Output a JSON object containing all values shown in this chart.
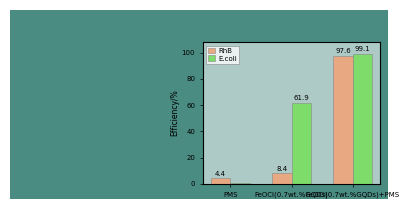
{
  "categories": [
    "PMS",
    "FeOCl(0.7wt.%GQDs)",
    "FeOCl(0.7wt.%GQDs)+PMS"
  ],
  "rhb_values": [
    4.4,
    8.4,
    97.6
  ],
  "ecoli_values": [
    0.5,
    61.9,
    99.1
  ],
  "rhb_labels": [
    "4.4",
    "8.4",
    "97.6"
  ],
  "ecoli_labels": [
    "",
    "61.9",
    "99.1"
  ],
  "bar_color_rhb": "#E8A882",
  "bar_color_ecoli": "#7EDD6A",
  "ylabel": "Efficiency/%",
  "ylim": [
    0,
    108
  ],
  "yticks": [
    0,
    20,
    40,
    60,
    80,
    100
  ],
  "yticklabels": [
    "0",
    "20",
    "40",
    "60",
    "80",
    "100"
  ],
  "legend_rhb": "RhB",
  "legend_ecoli": "E.coli",
  "bar_width": 0.32,
  "font_size_labels": 5.0,
  "font_size_ticks": 5.0,
  "font_size_legend": 5.0,
  "font_size_ylabel": 5.5,
  "bg_color": "#4A8B8C",
  "ocean_top": "#8BA89A",
  "ocean_bottom": "#2A6B5A",
  "chart_bg": "white",
  "chart_bg_alpha": 0.6,
  "fig_left_color": "#4A8A7A"
}
